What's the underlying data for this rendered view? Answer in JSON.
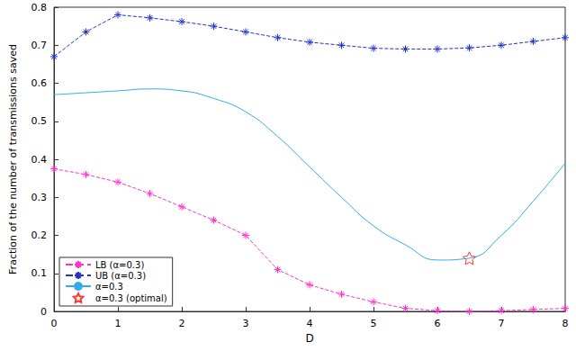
{
  "chart_data": {
    "type": "line",
    "xlabel": "D",
    "ylabel": "Fraction of the number of transmissions saved",
    "xlim": [
      0,
      8
    ],
    "xticks": [
      0,
      1,
      2,
      3,
      4,
      5,
      6,
      7,
      8
    ],
    "ylim": [
      0,
      0.8
    ],
    "yticks": [
      0,
      0.1,
      0.2,
      0.3,
      0.4,
      0.5,
      0.6,
      0.7,
      0.8
    ],
    "grid": false,
    "legend": "lower left",
    "series": [
      {
        "name": "LB (α=0.3)",
        "type": "line",
        "color": "#ff33cc",
        "marker": "asterisk",
        "line_style": "dashed",
        "x": [
          0,
          0.5,
          1,
          1.5,
          2,
          2.5,
          3,
          3.5,
          4,
          4.5,
          5,
          5.5,
          6,
          6.5,
          7,
          7.5,
          8
        ],
        "values": [
          0.375,
          0.36,
          0.34,
          0.31,
          0.275,
          0.24,
          0.2,
          0.11,
          0.07,
          0.045,
          0.025,
          0.008,
          0.002,
          0.0,
          0.002,
          0.005,
          0.008
        ]
      },
      {
        "name": "UB (α=0.3)",
        "type": "line",
        "color": "#2233cc",
        "marker": "asterisk",
        "line_style": "dashed",
        "x": [
          0,
          0.5,
          1,
          1.5,
          2,
          2.5,
          3,
          3.5,
          4,
          4.5,
          5,
          5.5,
          6,
          6.5,
          7,
          7.5,
          8
        ],
        "values": [
          0.67,
          0.735,
          0.78,
          0.772,
          0.762,
          0.75,
          0.735,
          0.72,
          0.708,
          0.7,
          0.692,
          0.69,
          0.69,
          0.693,
          0.7,
          0.71,
          0.72
        ]
      },
      {
        "name": "α=0.3",
        "type": "line",
        "color": "#33aaee",
        "marker": "none",
        "line_style": "solid",
        "x": [
          0,
          0.5,
          1,
          1.5,
          2,
          2.5,
          3,
          3.5,
          4,
          4.5,
          5,
          5.5,
          6,
          6.5,
          7,
          7.5,
          8
        ],
        "values": [
          0.57,
          0.575,
          0.58,
          0.585,
          0.58,
          0.56,
          0.525,
          0.46,
          0.38,
          0.3,
          0.225,
          0.175,
          0.135,
          0.14,
          0.2,
          0.29,
          0.39
        ]
      },
      {
        "name": "α=0.3 (optimal)",
        "type": "scatter",
        "color": "#ff0000",
        "marker": "star",
        "x": [
          6.5
        ],
        "values": [
          0.14
        ]
      }
    ]
  }
}
